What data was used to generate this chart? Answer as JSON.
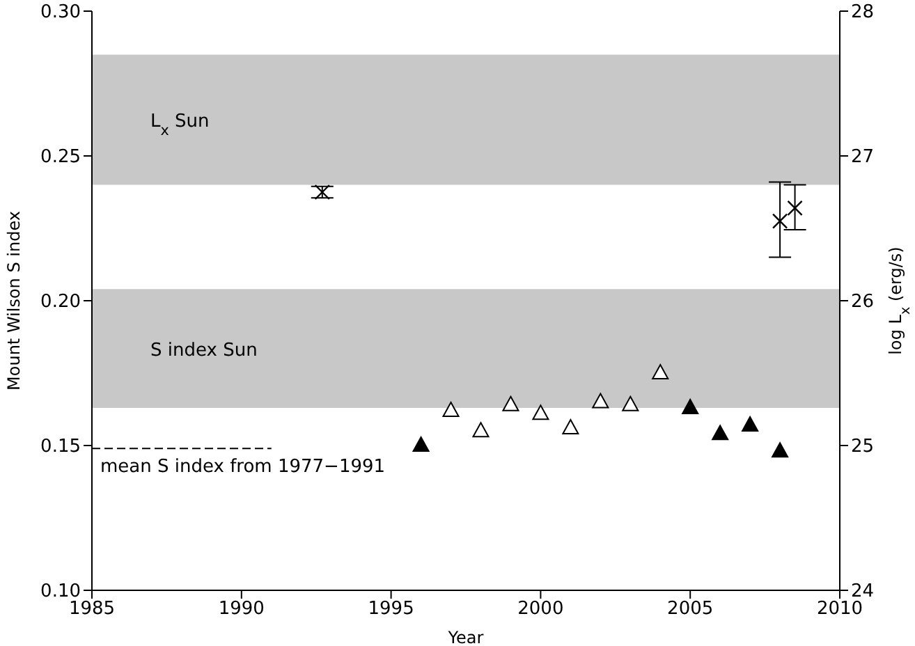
{
  "chart_data": {
    "type": "scatter",
    "xlabel": "Year",
    "ylabel": "Mount Wilson S index",
    "y2label": "log L$_{x}$ (erg/s)",
    "xlim": [
      1985,
      2010
    ],
    "xticks": [
      1985,
      1990,
      1995,
      2000,
      2005,
      2010
    ],
    "ylim": [
      0.1,
      0.3
    ],
    "yticks": [
      {
        "value": 0.1,
        "label": "0.10"
      },
      0.15,
      {
        "value": 0.2,
        "label": "0.20"
      },
      0.25,
      {
        "value": 0.3,
        "label": "0.30"
      }
    ],
    "y2lim": [
      24,
      28
    ],
    "y2ticks": [
      24,
      25,
      26,
      27,
      28
    ],
    "grid": false,
    "annotations": [
      {
        "text": "mean S index from 1977−1991",
        "x": 1985,
        "y": 0.149
      }
    ],
    "bands": [
      {
        "axis": "y2",
        "from": 26.8,
        "to": 27.7,
        "label": "L$_{x}$ Sun",
        "color": "#c8c8c8"
      },
      {
        "axis": "y",
        "from": 0.163,
        "to": 0.204,
        "label": "S index Sun",
        "color": "#c8c8c8"
      }
    ],
    "series": [
      {
        "type": "line",
        "color": "#000000",
        "line_style": "dashed",
        "marker": "none",
        "x": [
          1985,
          1991
        ],
        "values": [
          0.149,
          0.149
        ]
      },
      {
        "marker": "triangle",
        "color": "#ffffff",
        "x": [
          1997,
          1998,
          1999,
          2000,
          2001,
          2002,
          2003,
          2004
        ],
        "values": [
          0.162,
          0.155,
          0.164,
          0.161,
          0.156,
          0.165,
          0.164,
          0.175
        ]
      },
      {
        "marker": "triangle",
        "color": "#000000",
        "x": [
          1996,
          2005,
          2006,
          2007,
          2008
        ],
        "values": [
          0.15,
          0.163,
          0.154,
          0.157,
          0.148
        ]
      },
      {
        "marker": "cross",
        "color": "#000000",
        "axis": "y2",
        "x": [
          1992.7,
          2008,
          2008.5
        ],
        "values": [
          26.75,
          26.55,
          26.64
        ],
        "errors": [
          0.04,
          [
            26.3,
            26.82
          ],
          [
            26.49,
            26.8
          ]
        ]
      }
    ]
  }
}
